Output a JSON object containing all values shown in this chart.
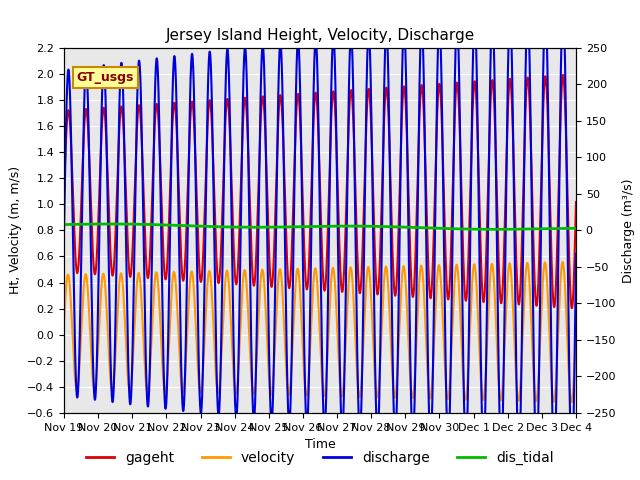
{
  "title": "Jersey Island Height, Velocity, Discharge",
  "xlabel": "Time",
  "ylabel_left": "Ht, Velocity (m, m/s)",
  "ylabel_right": "Discharge (m³/s)",
  "ylim_left": [
    -0.6,
    2.2
  ],
  "ylim_right": [
    -250,
    250
  ],
  "tidal_period_hours": 12.42,
  "series": {
    "gageht": {
      "color": "#dd0000",
      "lw": 1.5
    },
    "velocity": {
      "color": "#ff9900",
      "lw": 1.5
    },
    "discharge": {
      "color": "#0000dd",
      "lw": 1.5
    },
    "dis_tidal": {
      "color": "#00bb00",
      "lw": 2.0
    }
  },
  "xtick_labels": [
    "Nov 19",
    "Nov 20",
    "Nov 21",
    "Nov 22",
    "Nov 23",
    "Nov 24",
    "Nov 25",
    "Nov 26",
    "Nov 27",
    "Nov 28",
    "Nov 29",
    "Nov 30",
    "Dec 1",
    "Dec 2",
    "Dec 3",
    "Dec 4"
  ],
  "background_color": "#e8e8e8",
  "fig_background": "#ffffff",
  "watermark_text": "GT_usgs",
  "watermark_bg": "#ffff99",
  "watermark_border": "#cc8800",
  "title_fontsize": 11,
  "axis_fontsize": 9,
  "tick_fontsize": 8,
  "legend_fontsize": 10
}
